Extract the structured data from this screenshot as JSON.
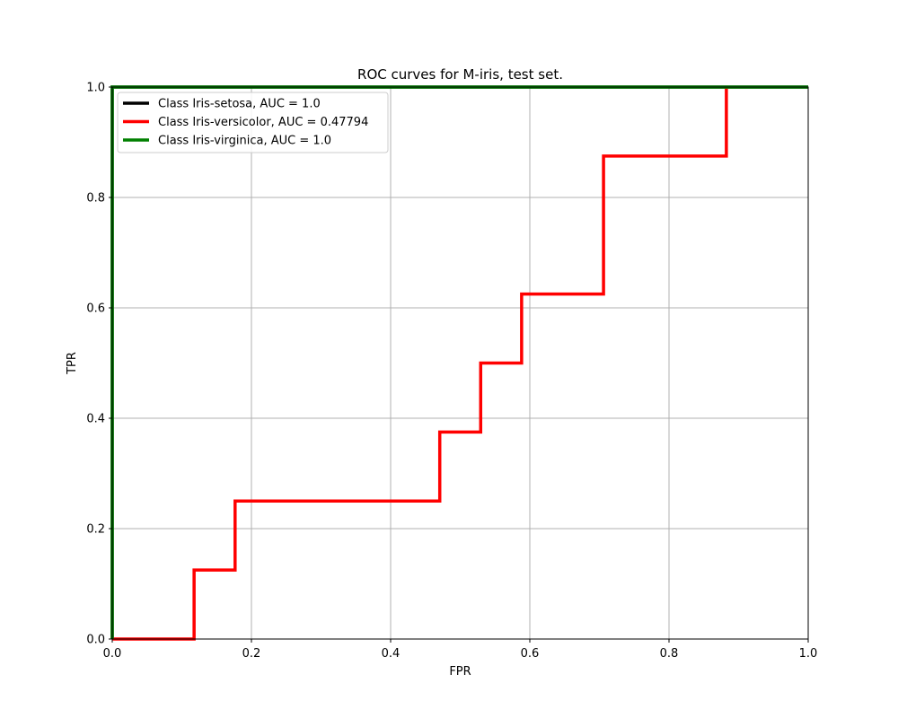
{
  "chart_data": {
    "type": "line",
    "title": "ROC curves for M-iris, test set.",
    "xlabel": "FPR",
    "ylabel": "TPR",
    "xlim": [
      0.0,
      1.0
    ],
    "ylim": [
      0.0,
      1.0
    ],
    "xticks": [
      "0.0",
      "0.2",
      "0.4",
      "0.6",
      "0.8",
      "1.0"
    ],
    "yticks": [
      "0.0",
      "0.2",
      "0.4",
      "0.6",
      "0.8",
      "1.0"
    ],
    "grid": true,
    "legend_position": "top-left",
    "series": [
      {
        "name": "Class Iris-setosa, AUC = 1.0",
        "color": "#000000",
        "x": [
          0.0,
          0.0,
          1.0
        ],
        "y": [
          0.0,
          1.0,
          1.0
        ]
      },
      {
        "name": "Class Iris-versicolor, AUC = 0.47794",
        "color": "#ff0000",
        "x": [
          0.0,
          0.1176,
          0.1176,
          0.1765,
          0.1765,
          0.4706,
          0.4706,
          0.5294,
          0.5294,
          0.5882,
          0.5882,
          0.7059,
          0.7059,
          0.8824,
          0.8824
        ],
        "y": [
          0.0,
          0.0,
          0.125,
          0.125,
          0.25,
          0.25,
          0.375,
          0.375,
          0.5,
          0.5,
          0.625,
          0.625,
          0.875,
          0.875,
          1.0
        ]
      },
      {
        "name": "Class Iris-virginica, AUC = 1.0",
        "color": "#008000",
        "x": [
          0.0,
          0.0,
          1.0
        ],
        "y": [
          0.0,
          1.0,
          1.0
        ]
      }
    ]
  }
}
